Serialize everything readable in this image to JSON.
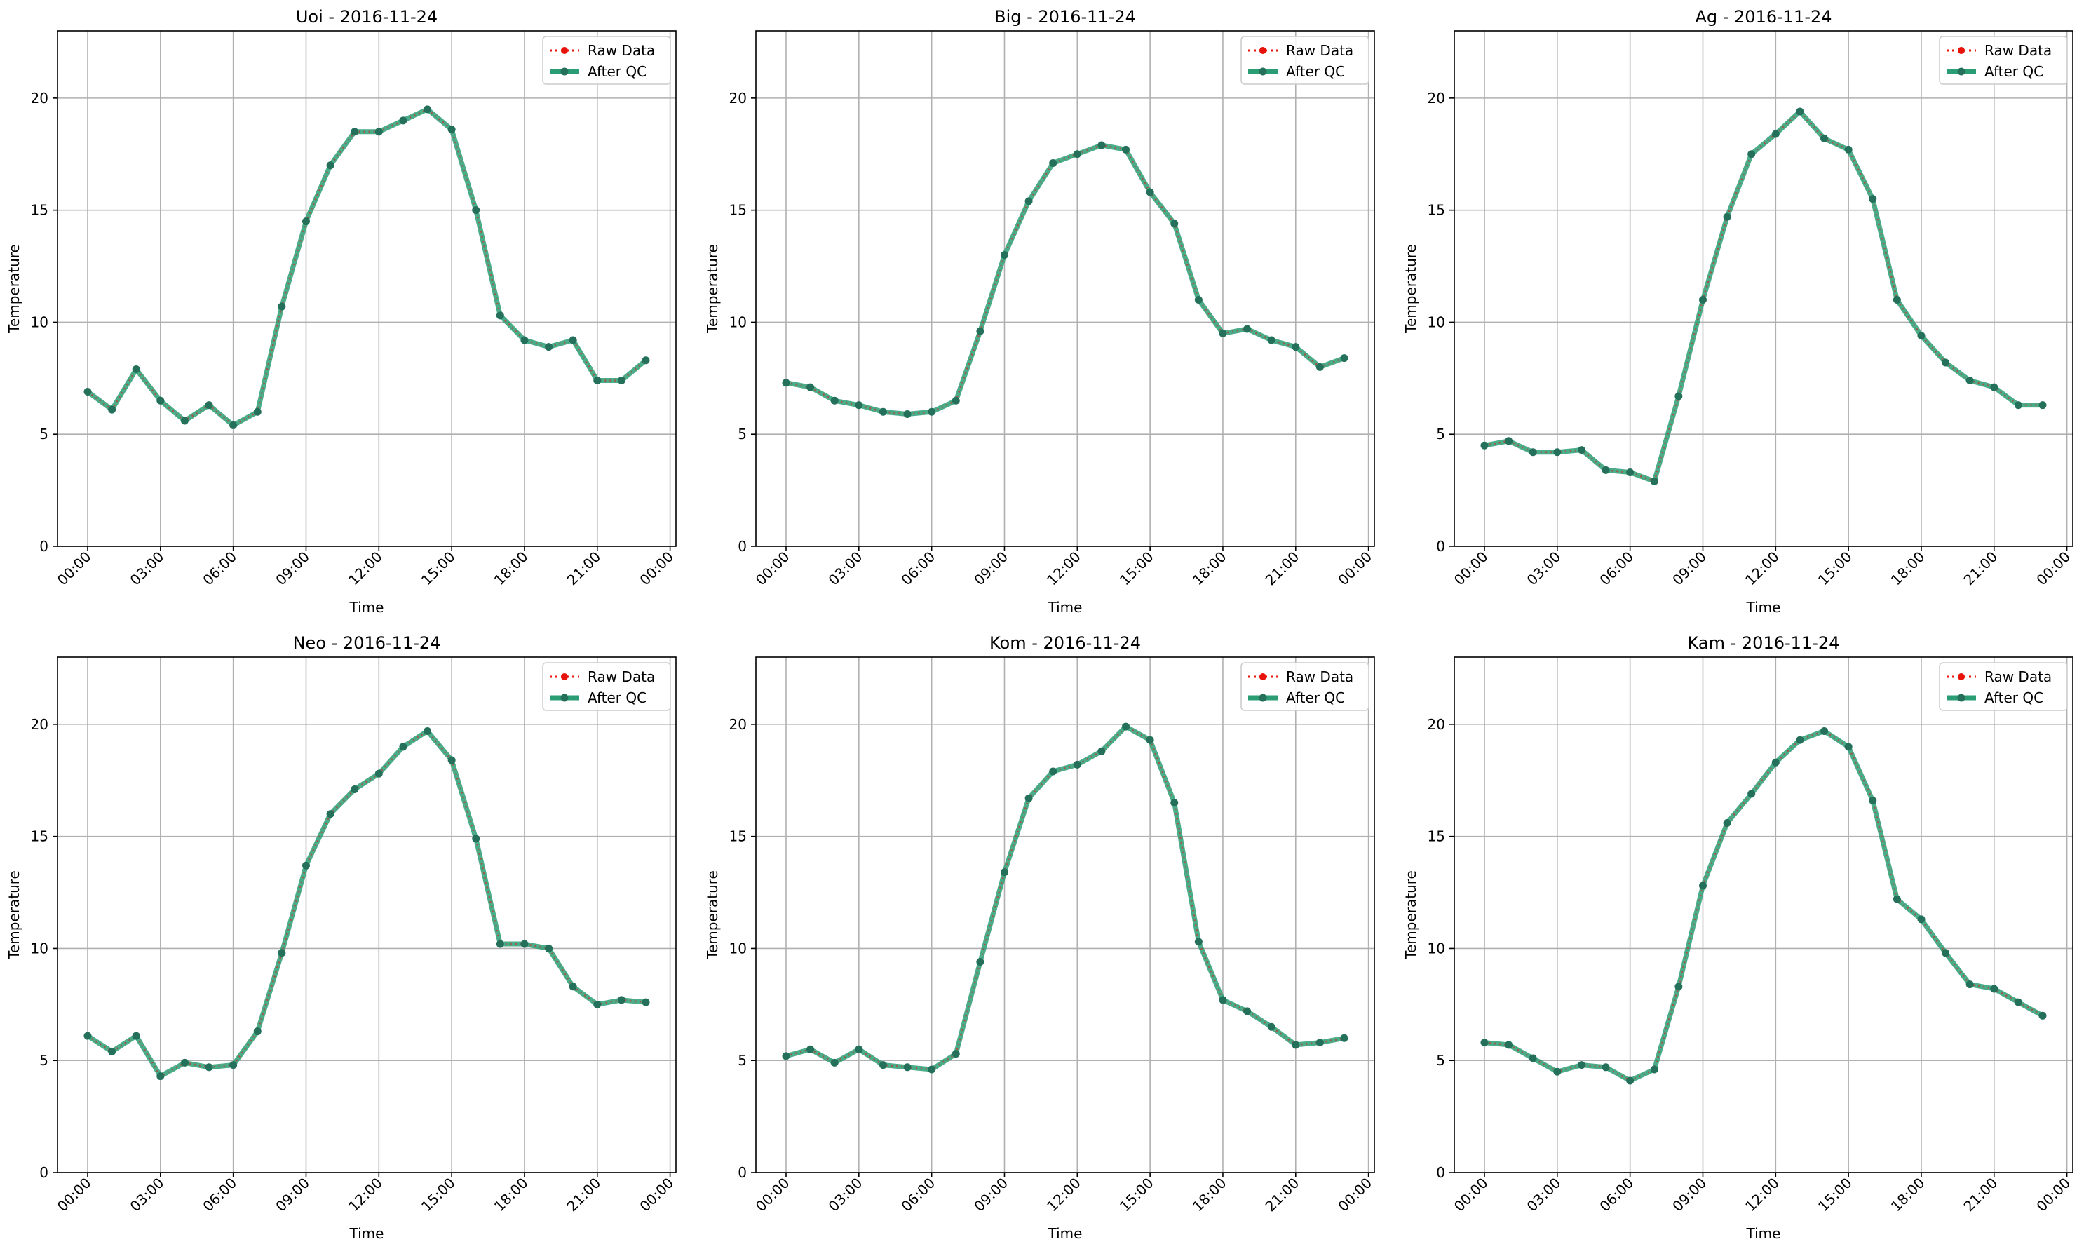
{
  "legend": {
    "raw_label": "Raw Data",
    "qc_label": "After QC",
    "placement": "upper-right"
  },
  "colors": {
    "raw": "#e8140c",
    "qc": "#2a9d74",
    "qc_marker": "#24705a",
    "grid": "#b0b0b0"
  },
  "chart_data": [
    {
      "type": "line",
      "title": "Uoi - 2016-11-24",
      "xlabel": "Time",
      "ylabel": "Temperature",
      "xticks": [
        "00:00",
        "03:00",
        "06:00",
        "09:00",
        "12:00",
        "15:00",
        "18:00",
        "21:00",
        "00:00"
      ],
      "yticks": [
        0,
        5,
        10,
        15,
        20
      ],
      "ylim": [
        0,
        23
      ],
      "grid": true,
      "x": [
        "00:00",
        "01:00",
        "02:00",
        "03:00",
        "04:00",
        "05:00",
        "06:00",
        "07:00",
        "08:00",
        "09:00",
        "10:00",
        "11:00",
        "12:00",
        "13:00",
        "14:00",
        "15:00",
        "16:00",
        "17:00",
        "18:00",
        "19:00",
        "20:00",
        "21:00",
        "22:00",
        "23:00"
      ],
      "series": [
        {
          "name": "Raw Data",
          "values": [
            6.9,
            6.1,
            7.9,
            6.5,
            5.6,
            6.3,
            5.4,
            6.0,
            10.7,
            14.5,
            17.0,
            18.5,
            18.5,
            19.0,
            19.5,
            18.6,
            15.0,
            10.3,
            9.2,
            8.9,
            9.2,
            7.4,
            7.4,
            8.3
          ]
        },
        {
          "name": "After QC",
          "values": [
            6.9,
            6.1,
            7.9,
            6.5,
            5.6,
            6.3,
            5.4,
            6.0,
            10.7,
            14.5,
            17.0,
            18.5,
            18.5,
            19.0,
            19.5,
            18.6,
            15.0,
            10.3,
            9.2,
            8.9,
            9.2,
            7.4,
            7.4,
            8.3
          ]
        }
      ]
    },
    {
      "type": "line",
      "title": "Big - 2016-11-24",
      "xlabel": "Time",
      "ylabel": "Temperature",
      "xticks": [
        "00:00",
        "03:00",
        "06:00",
        "09:00",
        "12:00",
        "15:00",
        "18:00",
        "21:00",
        "00:00"
      ],
      "yticks": [
        0,
        5,
        10,
        15,
        20
      ],
      "ylim": [
        0,
        23
      ],
      "grid": true,
      "x": [
        "00:00",
        "01:00",
        "02:00",
        "03:00",
        "04:00",
        "05:00",
        "06:00",
        "07:00",
        "08:00",
        "09:00",
        "10:00",
        "11:00",
        "12:00",
        "13:00",
        "14:00",
        "15:00",
        "16:00",
        "17:00",
        "18:00",
        "19:00",
        "20:00",
        "21:00",
        "22:00",
        "23:00"
      ],
      "series": [
        {
          "name": "Raw Data",
          "values": [
            7.3,
            7.1,
            6.5,
            6.3,
            6.0,
            5.9,
            6.0,
            6.5,
            9.6,
            13.0,
            15.4,
            17.1,
            17.5,
            17.9,
            17.7,
            15.8,
            14.4,
            11.0,
            9.5,
            9.7,
            9.2,
            8.9,
            8.0,
            8.4
          ]
        },
        {
          "name": "After QC",
          "values": [
            7.3,
            7.1,
            6.5,
            6.3,
            6.0,
            5.9,
            6.0,
            6.5,
            9.6,
            13.0,
            15.4,
            17.1,
            17.5,
            17.9,
            17.7,
            15.8,
            14.4,
            11.0,
            9.5,
            9.7,
            9.2,
            8.9,
            8.0,
            8.4
          ]
        }
      ]
    },
    {
      "type": "line",
      "title": "Ag - 2016-11-24",
      "xlabel": "Time",
      "ylabel": "Temperature",
      "xticks": [
        "00:00",
        "03:00",
        "06:00",
        "09:00",
        "12:00",
        "15:00",
        "18:00",
        "21:00",
        "00:00"
      ],
      "yticks": [
        0,
        5,
        10,
        15,
        20
      ],
      "ylim": [
        0,
        23
      ],
      "grid": true,
      "x": [
        "00:00",
        "01:00",
        "02:00",
        "03:00",
        "04:00",
        "05:00",
        "06:00",
        "07:00",
        "08:00",
        "09:00",
        "10:00",
        "11:00",
        "12:00",
        "13:00",
        "14:00",
        "15:00",
        "16:00",
        "17:00",
        "18:00",
        "19:00",
        "20:00",
        "21:00",
        "22:00",
        "23:00"
      ],
      "series": [
        {
          "name": "Raw Data",
          "values": [
            4.5,
            4.7,
            4.2,
            4.2,
            4.3,
            3.4,
            3.3,
            2.9,
            6.7,
            11.0,
            14.7,
            17.5,
            18.4,
            19.4,
            18.2,
            17.7,
            15.5,
            11.0,
            9.4,
            8.2,
            7.4,
            7.1,
            6.3,
            6.3
          ]
        },
        {
          "name": "After QC",
          "values": [
            4.5,
            4.7,
            4.2,
            4.2,
            4.3,
            3.4,
            3.3,
            2.9,
            6.7,
            11.0,
            14.7,
            17.5,
            18.4,
            19.4,
            18.2,
            17.7,
            15.5,
            11.0,
            9.4,
            8.2,
            7.4,
            7.1,
            6.3,
            6.3
          ]
        }
      ]
    },
    {
      "type": "line",
      "title": "Neo - 2016-11-24",
      "xlabel": "Time",
      "ylabel": "Temperature",
      "xticks": [
        "00:00",
        "03:00",
        "06:00",
        "09:00",
        "12:00",
        "15:00",
        "18:00",
        "21:00",
        "00:00"
      ],
      "yticks": [
        0,
        5,
        10,
        15,
        20
      ],
      "ylim": [
        0,
        23
      ],
      "grid": true,
      "x": [
        "00:00",
        "01:00",
        "02:00",
        "03:00",
        "04:00",
        "05:00",
        "06:00",
        "07:00",
        "08:00",
        "09:00",
        "10:00",
        "11:00",
        "12:00",
        "13:00",
        "14:00",
        "15:00",
        "16:00",
        "17:00",
        "18:00",
        "19:00",
        "20:00",
        "21:00",
        "22:00",
        "23:00"
      ],
      "series": [
        {
          "name": "Raw Data",
          "values": [
            6.1,
            5.4,
            6.1,
            4.3,
            4.9,
            4.7,
            4.8,
            6.3,
            9.8,
            13.7,
            16.0,
            17.1,
            17.8,
            19.0,
            19.7,
            18.4,
            14.9,
            10.2,
            10.2,
            10.0,
            8.3,
            7.5,
            7.7,
            7.6
          ]
        },
        {
          "name": "After QC",
          "values": [
            6.1,
            5.4,
            6.1,
            4.3,
            4.9,
            4.7,
            4.8,
            6.3,
            9.8,
            13.7,
            16.0,
            17.1,
            17.8,
            19.0,
            19.7,
            18.4,
            14.9,
            10.2,
            10.2,
            10.0,
            8.3,
            7.5,
            7.7,
            7.6
          ]
        }
      ]
    },
    {
      "type": "line",
      "title": "Kom - 2016-11-24",
      "xlabel": "Time",
      "ylabel": "Temperature",
      "xticks": [
        "00:00",
        "03:00",
        "06:00",
        "09:00",
        "12:00",
        "15:00",
        "18:00",
        "21:00",
        "00:00"
      ],
      "yticks": [
        0,
        5,
        10,
        15,
        20
      ],
      "ylim": [
        0,
        23
      ],
      "grid": true,
      "x": [
        "00:00",
        "01:00",
        "02:00",
        "03:00",
        "04:00",
        "05:00",
        "06:00",
        "07:00",
        "08:00",
        "09:00",
        "10:00",
        "11:00",
        "12:00",
        "13:00",
        "14:00",
        "15:00",
        "16:00",
        "17:00",
        "18:00",
        "19:00",
        "20:00",
        "21:00",
        "22:00",
        "23:00"
      ],
      "series": [
        {
          "name": "Raw Data",
          "values": [
            5.2,
            5.5,
            4.9,
            5.5,
            4.8,
            4.7,
            4.6,
            5.3,
            9.4,
            13.4,
            16.7,
            17.9,
            18.2,
            18.8,
            19.9,
            19.3,
            16.5,
            10.3,
            7.7,
            7.2,
            6.5,
            5.7,
            5.8,
            6.0
          ]
        },
        {
          "name": "After QC",
          "values": [
            5.2,
            5.5,
            4.9,
            5.5,
            4.8,
            4.7,
            4.6,
            5.3,
            9.4,
            13.4,
            16.7,
            17.9,
            18.2,
            18.8,
            19.9,
            19.3,
            16.5,
            10.3,
            7.7,
            7.2,
            6.5,
            5.7,
            5.8,
            6.0
          ]
        }
      ]
    },
    {
      "type": "line",
      "title": "Kam - 2016-11-24",
      "xlabel": "Time",
      "ylabel": "Temperature",
      "xticks": [
        "00:00",
        "03:00",
        "06:00",
        "09:00",
        "12:00",
        "15:00",
        "18:00",
        "21:00",
        "00:00"
      ],
      "yticks": [
        0,
        5,
        10,
        15,
        20
      ],
      "ylim": [
        0,
        23
      ],
      "grid": true,
      "x": [
        "00:00",
        "01:00",
        "02:00",
        "03:00",
        "04:00",
        "05:00",
        "06:00",
        "07:00",
        "08:00",
        "09:00",
        "10:00",
        "11:00",
        "12:00",
        "13:00",
        "14:00",
        "15:00",
        "16:00",
        "17:00",
        "18:00",
        "19:00",
        "20:00",
        "21:00",
        "22:00",
        "23:00"
      ],
      "series": [
        {
          "name": "Raw Data",
          "values": [
            5.8,
            5.7,
            5.1,
            4.5,
            4.8,
            4.7,
            4.1,
            4.6,
            8.3,
            12.8,
            15.6,
            16.9,
            18.3,
            19.3,
            19.7,
            19.0,
            16.6,
            12.2,
            11.3,
            9.8,
            8.4,
            8.2,
            7.6,
            7.0
          ]
        },
        {
          "name": "After QC",
          "values": [
            5.8,
            5.7,
            5.1,
            4.5,
            4.8,
            4.7,
            4.1,
            4.6,
            8.3,
            12.8,
            15.6,
            16.9,
            18.3,
            19.3,
            19.7,
            19.0,
            16.6,
            12.2,
            11.3,
            9.8,
            8.4,
            8.2,
            7.6,
            7.0
          ]
        }
      ]
    }
  ]
}
